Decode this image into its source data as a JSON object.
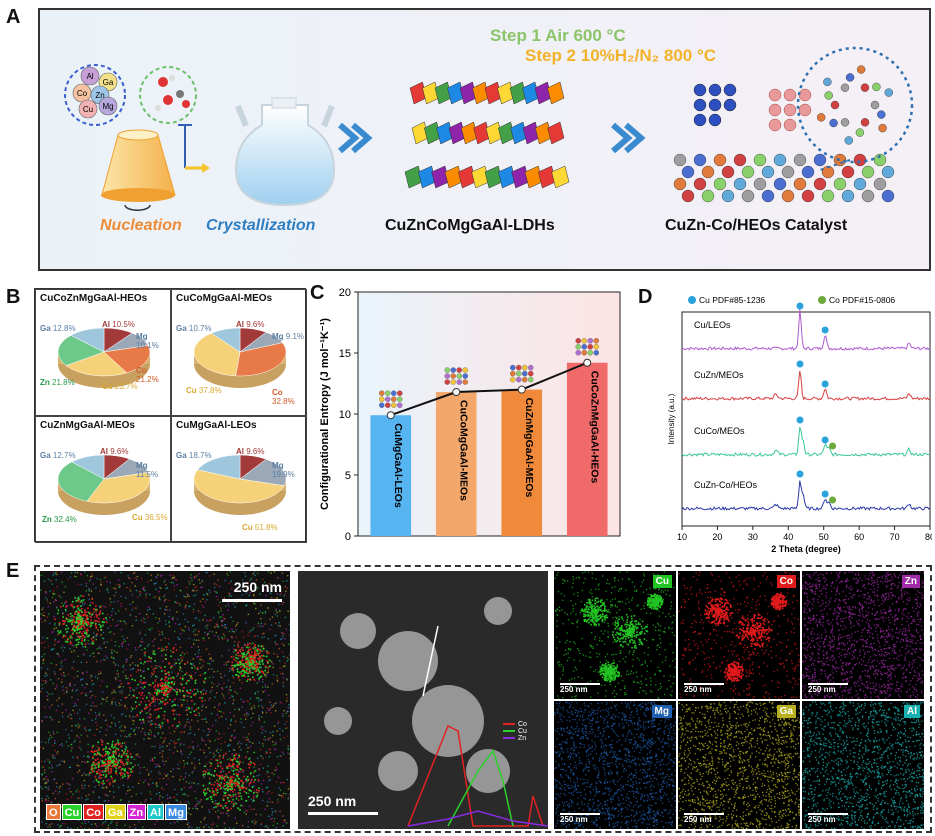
{
  "panel_labels": {
    "a": "A",
    "b": "B",
    "c": "C",
    "d": "D",
    "e": "E"
  },
  "panel_a": {
    "step1": "Step 1 Air 600 °C",
    "step2": "Step 2 10%H₂/N₂ 800 °C",
    "nucleation": "Nucleation",
    "crystallization": "Crystallization",
    "ldh": "CuZnCoMgGaAl-LDHs",
    "catalyst": "CuZn-Co/HEOs Catalyst",
    "ions": [
      "Al",
      "Ga",
      "Co",
      "Zn",
      "Cu",
      "Mg"
    ]
  },
  "panel_b": {
    "pies": [
      {
        "title": "CuCoZnMgGaAl-HEOs",
        "slices": [
          {
            "name": "Al",
            "value": "10.5%",
            "color": "#a33a3a"
          },
          {
            "name": "Mg",
            "value": "10.1%",
            "color": "#9aa8b8"
          },
          {
            "name": "Co",
            "value": "21.2%",
            "color": "#e87a4a"
          },
          {
            "name": "Cu",
            "value": "23.7%",
            "color": "#f5d27a"
          },
          {
            "name": "Zn",
            "value": "21.8%",
            "color": "#6cc98a"
          },
          {
            "name": "Ga",
            "value": "12.8%",
            "color": "#9ec6dc"
          }
        ]
      },
      {
        "title": "CuCoMgGaAl-MEOs",
        "slices": [
          {
            "name": "Al",
            "value": "9.6%",
            "color": "#a33a3a"
          },
          {
            "name": "Mg",
            "value": "9.1%",
            "color": "#9aa8b8"
          },
          {
            "name": "Co",
            "value": "32.8%",
            "color": "#e87a4a"
          },
          {
            "name": "Cu",
            "value": "37.8%",
            "color": "#f5d27a"
          },
          {
            "name": "Ga",
            "value": "10.7%",
            "color": "#9ec6dc"
          }
        ]
      },
      {
        "title": "CuZnMgGaAl-MEOs",
        "slices": [
          {
            "name": "Al",
            "value": "9.6%",
            "color": "#a33a3a"
          },
          {
            "name": "Mg",
            "value": "11.5%",
            "color": "#9aa8b8"
          },
          {
            "name": "Cu",
            "value": "36.5%",
            "color": "#f5d27a"
          },
          {
            "name": "Zn",
            "value": "32.4%",
            "color": "#6cc98a"
          },
          {
            "name": "Ga",
            "value": "12.7%",
            "color": "#9ec6dc"
          }
        ]
      },
      {
        "title": "CuMgGaAl-LEOs",
        "slices": [
          {
            "name": "Al",
            "value": "9.6%",
            "color": "#a33a3a"
          },
          {
            "name": "Mg",
            "value": "19.9%",
            "color": "#9aa8b8"
          },
          {
            "name": "Cu",
            "value": "51.8%",
            "color": "#f5d27a"
          },
          {
            "name": "Ga",
            "value": "18.7%",
            "color": "#9ec6dc"
          }
        ]
      }
    ]
  },
  "chart_data": [
    {
      "type": "bar",
      "categories": [
        "CuMgGaAl-LEOs",
        "CuCoMgGaAl-MEOs",
        "CuZnMgGaAl-MEOs",
        "CuCoZnMgGaAl-HEOs"
      ],
      "values": [
        9.9,
        11.8,
        12.0,
        14.2
      ],
      "colors": [
        "#56b4f0",
        "#f4a76a",
        "#f08a3a",
        "#f06a6a"
      ],
      "ylabel": "Configurational Entropy (J mol⁻¹K⁻¹)",
      "ylim": [
        0,
        20
      ],
      "yticks": [
        "0",
        "5",
        "10",
        "15",
        "20"
      ]
    },
    {
      "type": "line",
      "xlabel": "2 Theta (degree)",
      "ylabel": "Intensity (a.u.)",
      "xlim": [
        10,
        80
      ],
      "xticks": [
        "10",
        "20",
        "30",
        "40",
        "50",
        "60",
        "70",
        "80"
      ],
      "legend": [
        {
          "name": "Cu PDF#85-1236",
          "color": "#29a3dc"
        },
        {
          "name": "Co PDF#15-0806",
          "color": "#6da83a"
        }
      ],
      "series": [
        {
          "name": "Cu/LEOs",
          "color": "#b05bd0"
        },
        {
          "name": "CuZn/MEOs",
          "color": "#d94040"
        },
        {
          "name": "CuCo/MEOs",
          "color": "#3cc79a"
        },
        {
          "name": "CuZn-Co/HEOs",
          "color": "#2b3aa8"
        }
      ]
    }
  ],
  "panel_e": {
    "scale_main": "250 nm",
    "scale_small": "250 nm",
    "overlay_legend": [
      {
        "name": "O",
        "color": "#e8793a"
      },
      {
        "name": "Cu",
        "color": "#2bd12b"
      },
      {
        "name": "Co",
        "color": "#e02222"
      },
      {
        "name": "Ga",
        "color": "#e0d21a"
      },
      {
        "name": "Zn",
        "color": "#d425d4"
      },
      {
        "name": "Al",
        "color": "#1ac8c8"
      },
      {
        "name": "Mg",
        "color": "#3a8ae0"
      }
    ],
    "line_legend": [
      {
        "name": "Co",
        "color": "#e02222"
      },
      {
        "name": "Cu",
        "color": "#2bd12b"
      },
      {
        "name": "Zn",
        "color": "#8a2be2"
      }
    ],
    "maps": [
      {
        "name": "Cu",
        "color": "#22c322"
      },
      {
        "name": "Co",
        "color": "#e01b1b"
      },
      {
        "name": "Zn",
        "color": "#a02aa8"
      },
      {
        "name": "Mg",
        "color": "#1f5fb0"
      },
      {
        "name": "Ga",
        "color": "#b8b020"
      },
      {
        "name": "Al",
        "color": "#1ab0b0"
      }
    ]
  }
}
